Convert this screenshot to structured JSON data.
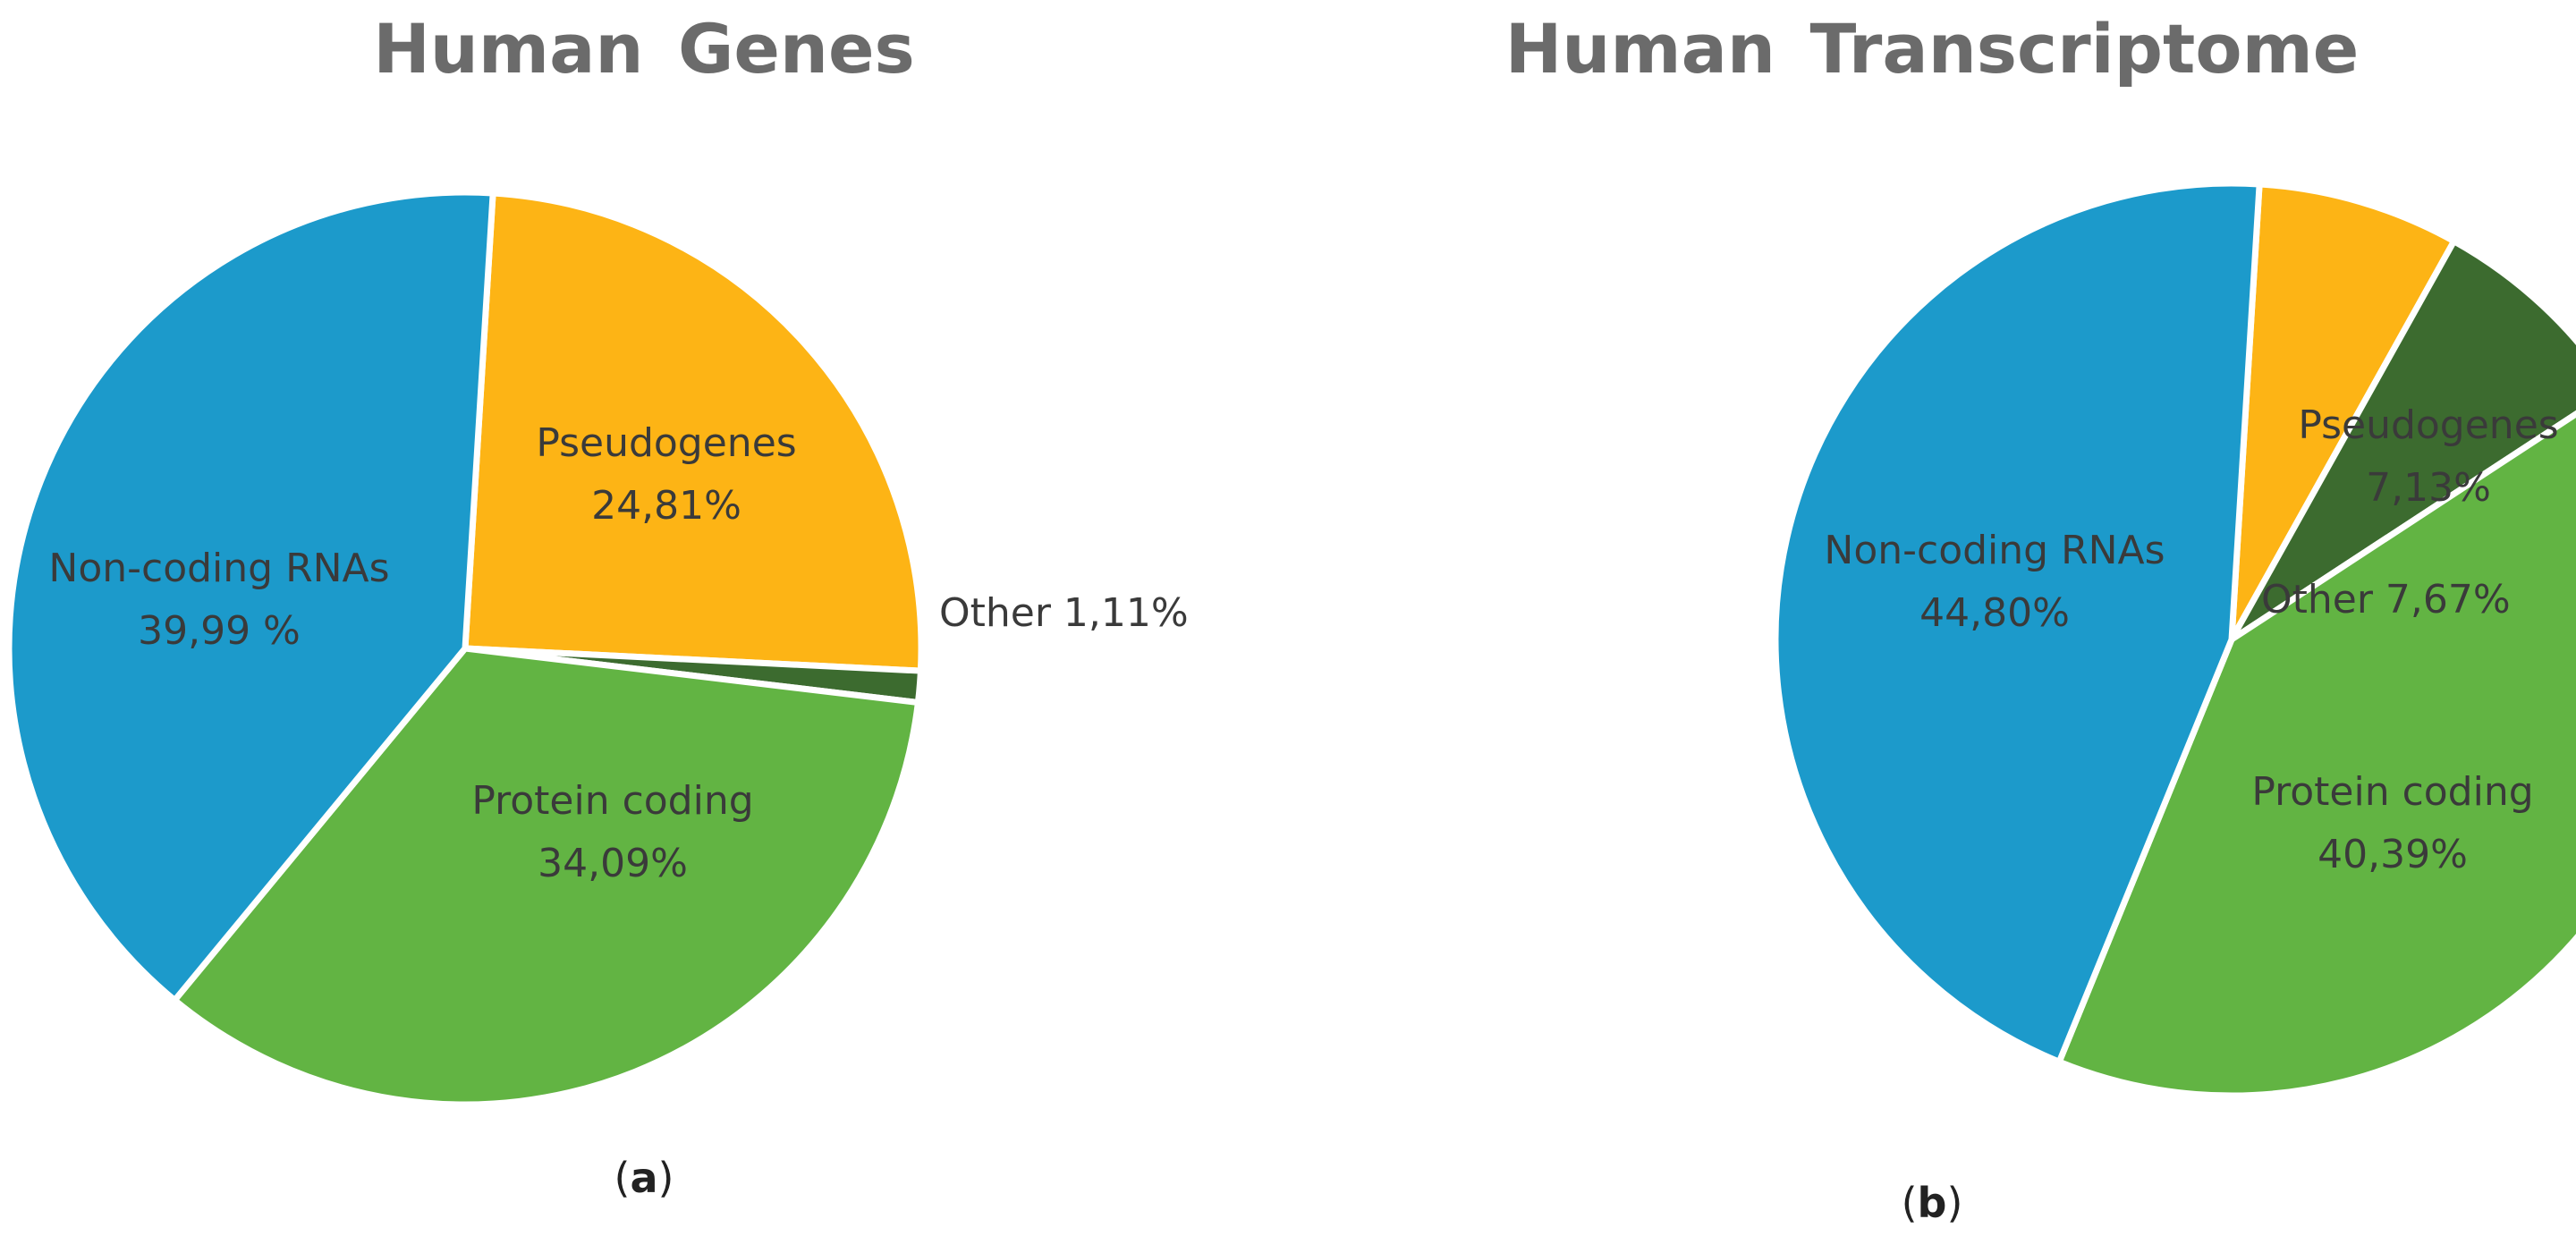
{
  "chart_data": [
    {
      "type": "pie",
      "title": "Human Genes",
      "caption_letter": "a",
      "slices": [
        {
          "key": "pseudogenes",
          "label": "Pseudogenes",
          "value_text": "24,81%",
          "value": 24.81,
          "color": "#fdb415"
        },
        {
          "key": "other",
          "label": "Other 1,11%",
          "value_text": "",
          "value": 1.11,
          "color": "#3c6b2f"
        },
        {
          "key": "protein-coding",
          "label": "Protein coding",
          "value_text": "34,09%",
          "value": 34.09,
          "color": "#62b443"
        },
        {
          "key": "non-coding-rnas",
          "label": "Non-coding RNAs",
          "value_text": "39,99 %",
          "value": 39.99,
          "color": "#1c9acb"
        }
      ]
    },
    {
      "type": "pie",
      "title": "Human Transcriptome",
      "caption_letter": "b",
      "slices": [
        {
          "key": "pseudogenes",
          "label": "Pseudogenes",
          "value_text": "7,13%",
          "value": 7.13,
          "color": "#fdb415"
        },
        {
          "key": "other",
          "label": "Other 7,67%",
          "value_text": "",
          "value": 7.67,
          "color": "#3c6b2f"
        },
        {
          "key": "protein-coding",
          "label": "Protein coding",
          "value_text": "40,39%",
          "value": 40.39,
          "color": "#62b443"
        },
        {
          "key": "non-coding-rnas",
          "label": "Non-coding RNAs",
          "value_text": "44,80%",
          "value": 44.8,
          "color": "#1c9acb"
        }
      ]
    }
  ]
}
